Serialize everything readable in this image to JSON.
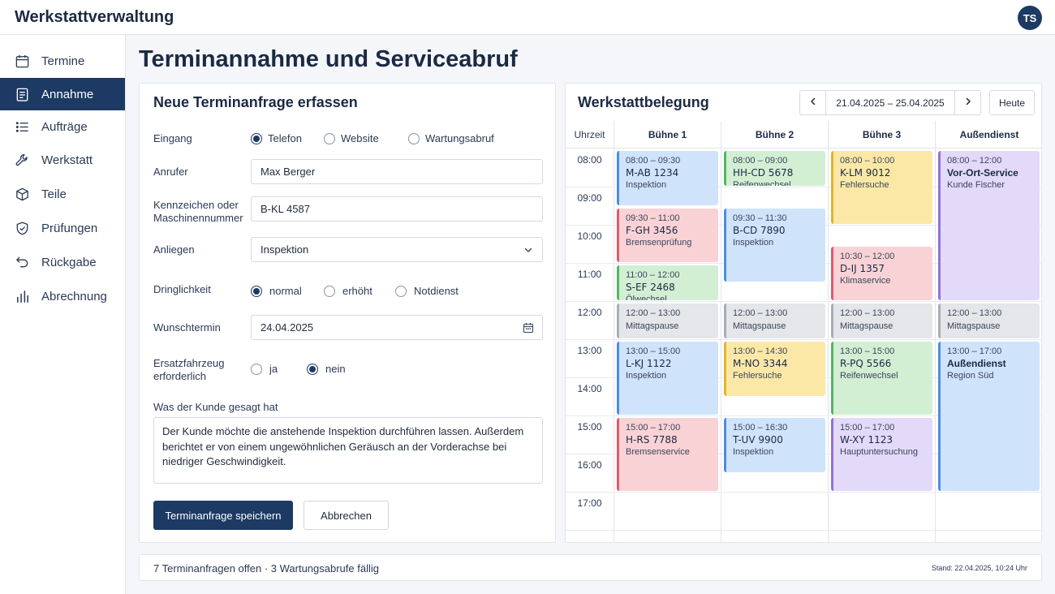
{
  "app": {
    "title": "Werkstattverwaltung",
    "user_initials": "TS"
  },
  "sidebar": {
    "items": [
      {
        "label": "Termine",
        "icon": "calendar-icon"
      },
      {
        "label": "Annahme",
        "icon": "clipboard-icon",
        "active": true
      },
      {
        "label": "Aufträge",
        "icon": "list-icon"
      },
      {
        "label": "Werkstatt",
        "icon": "wrench-icon"
      },
      {
        "label": "Teile",
        "icon": "box-icon"
      },
      {
        "label": "Prüfungen",
        "icon": "shield-check-icon"
      },
      {
        "label": "Rückgabe",
        "icon": "return-arrow-icon"
      },
      {
        "label": "Abrechnung",
        "icon": "bar-chart-icon"
      }
    ]
  },
  "page": {
    "title": "Terminannahme und Serviceabruf"
  },
  "form": {
    "title": "Neue Terminanfrage erfassen",
    "eingang": {
      "label": "Eingang",
      "options": [
        "Telefon",
        "Website",
        "Wartungsabruf"
      ],
      "selected": "Telefon"
    },
    "anrufer": {
      "label": "Anrufer",
      "value": "Max Berger"
    },
    "kennzeichen": {
      "label": "Kennzeichen oder Maschinennummer",
      "value": "B-KL 4587"
    },
    "anliegen": {
      "label": "Anliegen",
      "value": "Inspektion"
    },
    "dringlichkeit": {
      "label": "Dringlichkeit",
      "options": [
        "normal",
        "erhöht",
        "Notdienst"
      ],
      "selected": "normal"
    },
    "wunschtermin": {
      "label": "Wunschtermin",
      "value": "24.04.2025"
    },
    "ersatzfahrzeug": {
      "label": "Ersatzfahrzeug erforderlich",
      "options": [
        "ja",
        "nein"
      ],
      "selected": "nein"
    },
    "kundenaussage": {
      "label": "Was der Kunde gesagt hat",
      "value": "Der Kunde möchte die anstehende Inspektion durchführen lassen. Außerdem berichtet er von einem ungewöhnlichen Geräusch an der Vorderachse bei niedriger Geschwindigkeit."
    },
    "save_label": "Terminanfrage speichern",
    "cancel_label": "Abbrechen"
  },
  "calendar": {
    "title": "Werkstattbelegung",
    "date_range": "21.04.2025 – 25.04.2025",
    "today_label": "Heute",
    "time_header": "Uhrzeit",
    "columns": [
      "Bühne 1",
      "Bühne 2",
      "Bühne 3",
      "Außendienst"
    ],
    "hours": [
      "08:00",
      "09:00",
      "10:00",
      "11:00",
      "12:00",
      "13:00",
      "14:00",
      "15:00",
      "16:00",
      "17:00"
    ],
    "appointments": [
      {
        "column": 0,
        "start": "08:00",
        "end": "09:30",
        "time": "08:00 – 09:30",
        "plate": "M-AB 1234",
        "desc": "Inspektion",
        "color": "blue"
      },
      {
        "column": 0,
        "start": "09:30",
        "end": "11:00",
        "time": "09:30 – 11:00",
        "plate": "F-GH 3456",
        "desc": "Bremsenprüfung",
        "color": "red"
      },
      {
        "column": 0,
        "start": "11:00",
        "end": "12:00",
        "time": "11:00 – 12:00",
        "plate": "S-EF 2468",
        "desc": "Ölwechsel",
        "color": "green"
      },
      {
        "column": 0,
        "start": "12:00",
        "end": "13:00",
        "time": "12:00 – 13:00",
        "plate": "",
        "desc": "Mittagspause",
        "color": "gray"
      },
      {
        "column": 0,
        "start": "13:00",
        "end": "15:00",
        "time": "13:00 – 15:00",
        "plate": "L-KJ 1122",
        "desc": "Inspektion",
        "color": "blue"
      },
      {
        "column": 0,
        "start": "15:00",
        "end": "17:00",
        "time": "15:00 – 17:00",
        "plate": "H-RS 7788",
        "desc": "Bremsenservice",
        "color": "red"
      },
      {
        "column": 1,
        "start": "08:00",
        "end": "09:00",
        "time": "08:00 – 09:00",
        "plate": "HH-CD 5678",
        "desc": "Reifenwechsel",
        "color": "green"
      },
      {
        "column": 1,
        "start": "09:30",
        "end": "11:30",
        "time": "09:30 – 11:30",
        "plate": "B-CD 7890",
        "desc": "Inspektion",
        "color": "blue"
      },
      {
        "column": 1,
        "start": "12:00",
        "end": "13:00",
        "time": "12:00 – 13:00",
        "plate": "",
        "desc": "Mittagspause",
        "color": "gray"
      },
      {
        "column": 1,
        "start": "13:00",
        "end": "14:30",
        "time": "13:00 – 14:30",
        "plate": "M-NO 3344",
        "desc": "Fehlersuche",
        "color": "yellow"
      },
      {
        "column": 1,
        "start": "15:00",
        "end": "16:30",
        "time": "15:00 – 16:30",
        "plate": "T-UV 9900",
        "desc": "Inspektion",
        "color": "blue"
      },
      {
        "column": 2,
        "start": "08:00",
        "end": "10:00",
        "time": "08:00 – 10:00",
        "plate": "K-LM 9012",
        "desc": "Fehlersuche",
        "color": "yellow"
      },
      {
        "column": 2,
        "start": "10:30",
        "end": "12:00",
        "time": "10:30 – 12:00",
        "plate": "D-IJ 1357",
        "desc": "Klimaservice",
        "color": "red"
      },
      {
        "column": 2,
        "start": "12:00",
        "end": "13:00",
        "time": "12:00 – 13:00",
        "plate": "",
        "desc": "Mittagspause",
        "color": "gray"
      },
      {
        "column": 2,
        "start": "13:00",
        "end": "15:00",
        "time": "13:00 – 15:00",
        "plate": "R-PQ 5566",
        "desc": "Reifenwechsel",
        "color": "green"
      },
      {
        "column": 2,
        "start": "15:00",
        "end": "17:00",
        "time": "15:00 – 17:00",
        "plate": "W-XY 1123",
        "desc": "Hauptuntersuchung",
        "color": "purple"
      },
      {
        "column": 3,
        "start": "08:00",
        "end": "12:00",
        "time": "08:00 – 12:00",
        "plate": "Vor-Ort-Service",
        "desc": "Kunde Fischer",
        "color": "purple",
        "bold": true
      },
      {
        "column": 3,
        "start": "12:00",
        "end": "13:00",
        "time": "12:00 – 13:00",
        "plate": "",
        "desc": "Mittagspause",
        "color": "gray"
      },
      {
        "column": 3,
        "start": "13:00",
        "end": "17:00",
        "time": "13:00 – 17:00",
        "plate": "Außendienst",
        "desc": "Region Süd",
        "color": "blue",
        "bold": true
      }
    ]
  },
  "status": {
    "summary": "7 Terminanfragen offen · 3 Wartungsabrufe fällig",
    "timestamp": "Stand: 22.04.2025, 10:24 Uhr"
  }
}
